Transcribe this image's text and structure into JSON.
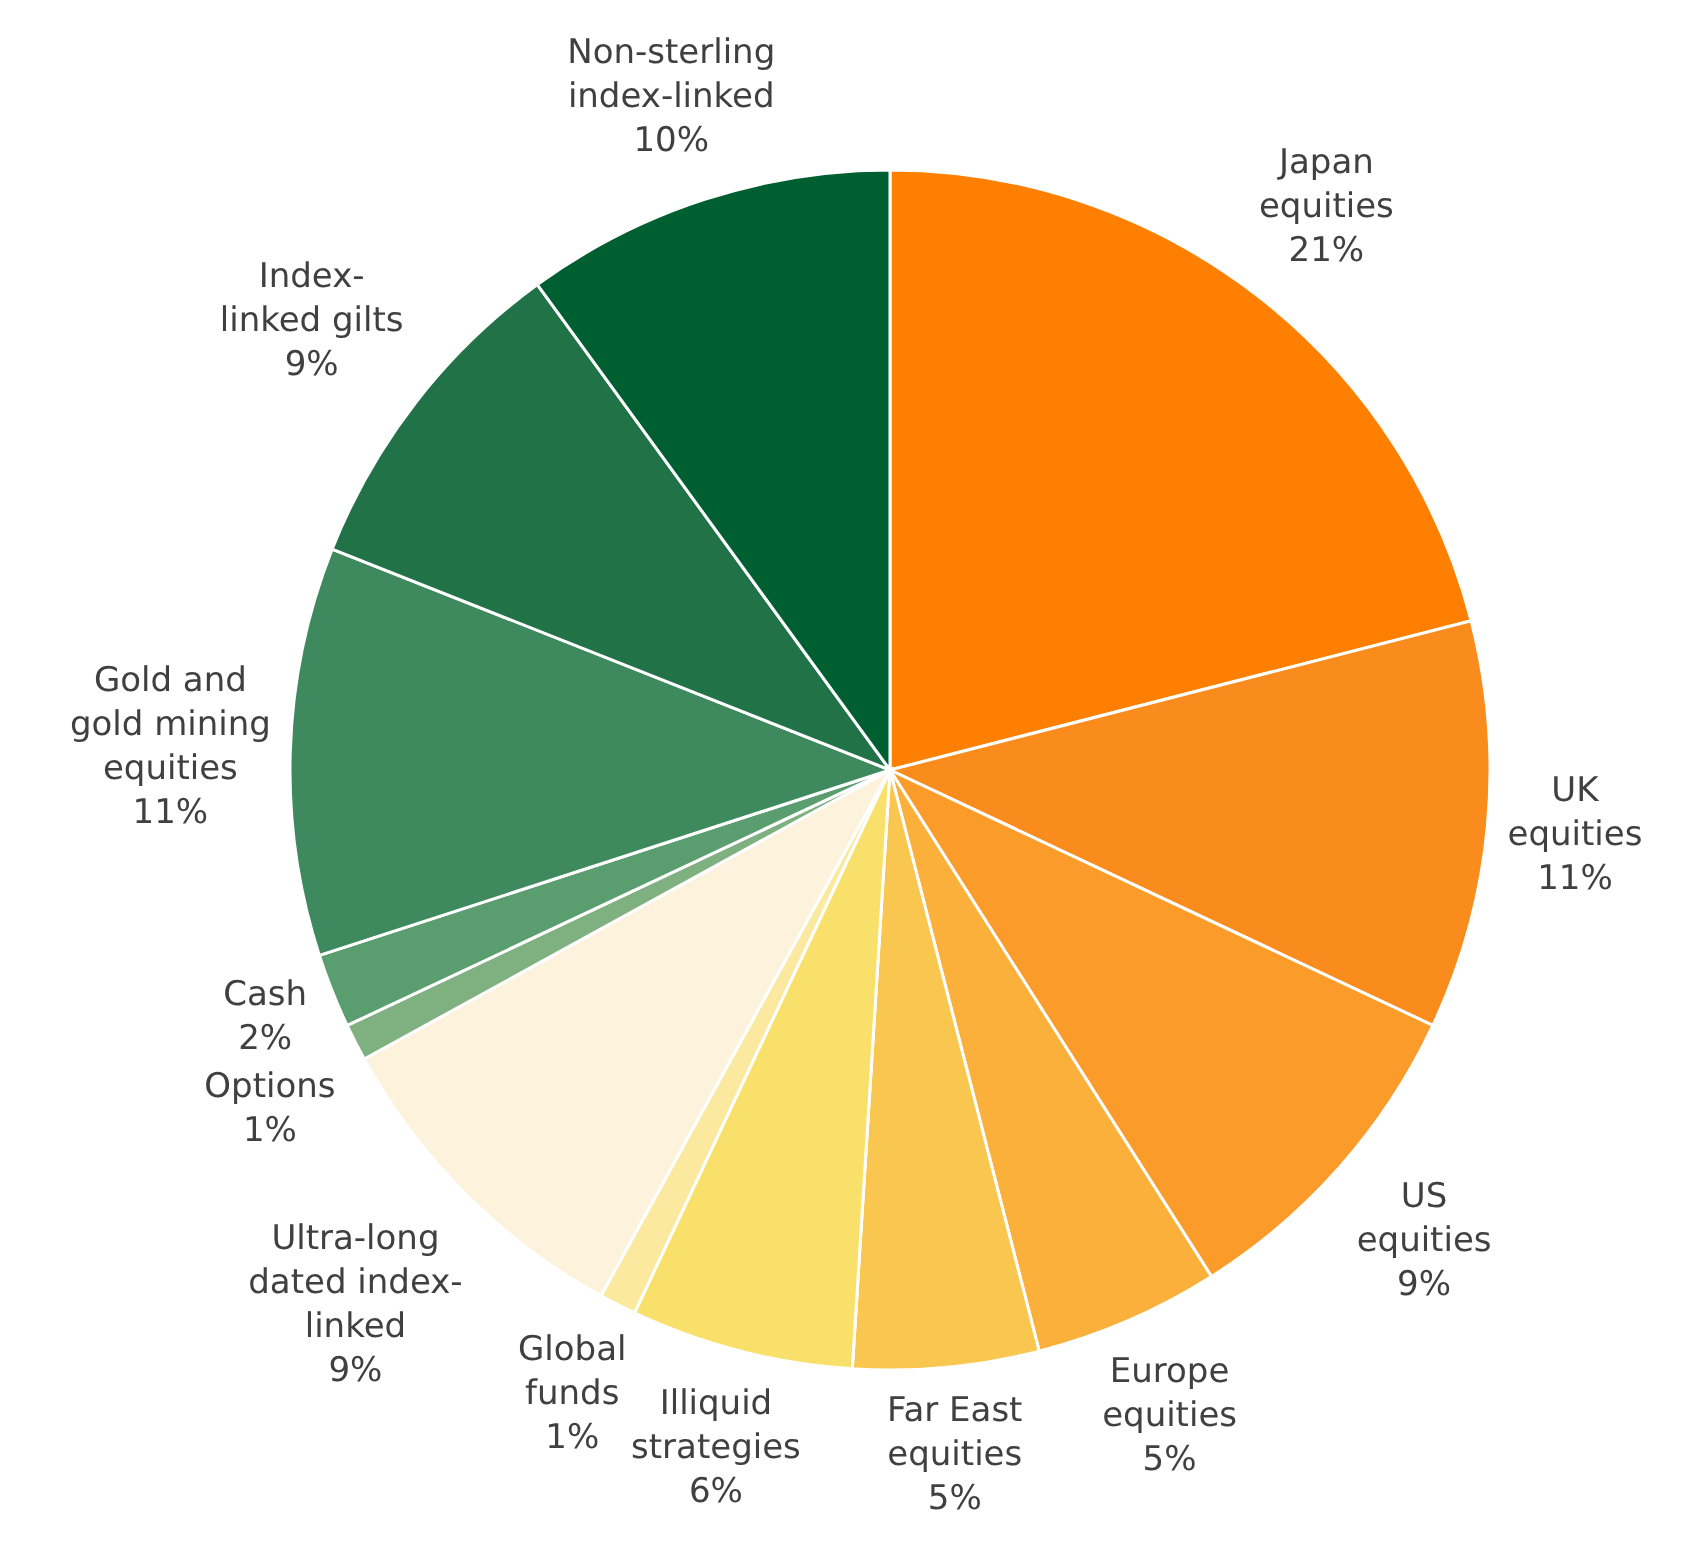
{
  "chart_data": {
    "type": "pie",
    "categories": [
      "Japan\nequities",
      "UK\nequities",
      "US\nequities",
      "Europe\nequities",
      "Far East\nequities",
      "Illiquid\nstrategies",
      "Global\nfunds",
      "Ultra-long\ndated index-\nlinked",
      "Options",
      "Cash",
      "Gold and\ngold mining\nequities",
      "Index-\nlinked gilts",
      "Non-sterling\nindex-linked"
    ],
    "values": [
      21,
      11,
      9,
      5,
      5,
      6,
      1,
      9,
      1,
      2,
      11,
      9,
      10
    ],
    "value_labels": [
      "21%",
      "11%",
      "9%",
      "5%",
      "5%",
      "6%",
      "1%",
      "9%",
      "1%",
      "2%",
      "11%",
      "9%",
      "10%"
    ],
    "colors": [
      "#ff7f00",
      "#fa8c1e",
      "#fb9c2a",
      "#fbb03b",
      "#f9c74f",
      "#f8e06a",
      "#fbe9a0",
      "#fdf3dc",
      "#7fb07f",
      "#5a9e6f",
      "#3e8a5e",
      "#217347",
      "#005f30"
    ]
  }
}
